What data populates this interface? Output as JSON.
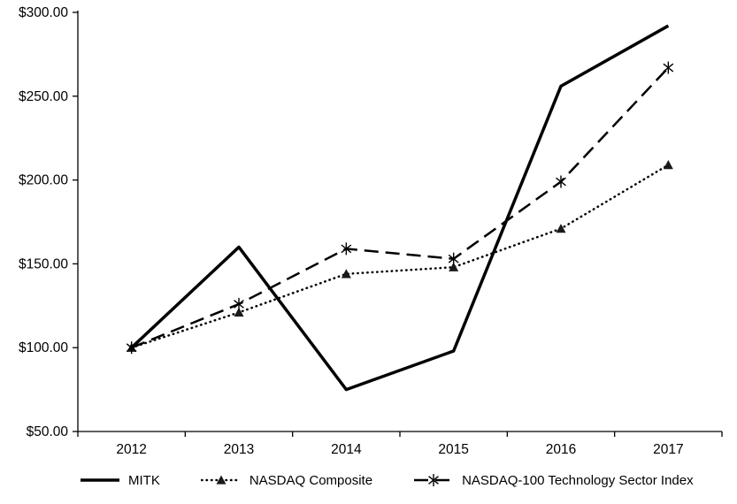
{
  "chart_data": {
    "type": "line",
    "title": "",
    "xlabel": "",
    "ylabel": "",
    "x": [
      "2012",
      "2013",
      "2014",
      "2015",
      "2016",
      "2017"
    ],
    "ylim": [
      50,
      300
    ],
    "y_ticks": [
      50,
      100,
      150,
      200,
      250,
      300
    ],
    "y_tick_labels": [
      "$50.00",
      "$100.00",
      "$150.00",
      "$200.00",
      "$250.00",
      "$300.00"
    ],
    "grid": false,
    "legend_position": "bottom",
    "axis_color": "#000000",
    "series": [
      {
        "name": "MITK",
        "values": [
          100,
          160,
          75,
          98,
          256,
          292
        ],
        "line_style": "solid",
        "marker": "none",
        "color": "#000000",
        "width": 3.5
      },
      {
        "name": "NASDAQ Composite",
        "values": [
          100,
          121,
          144,
          148,
          171,
          209
        ],
        "line_style": "dotted",
        "marker": "triangle",
        "color": "#000000",
        "width": 2.5
      },
      {
        "name": "NASDAQ-100 Technology Sector Index",
        "values": [
          100,
          126,
          159,
          153,
          199,
          267
        ],
        "line_style": "dashed",
        "marker": "asterisk",
        "color": "#000000",
        "width": 2.5
      }
    ]
  }
}
